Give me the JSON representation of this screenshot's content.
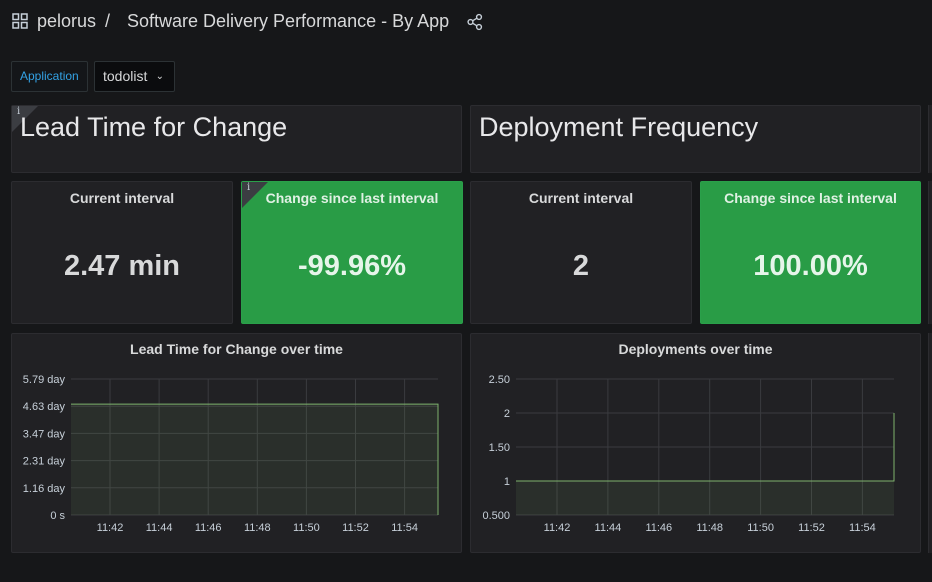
{
  "header": {
    "folder": "pelorus",
    "separator": "/",
    "dashboard_title": "Software Delivery Performance - By App",
    "grid_icon": "apps-grid-icon",
    "share_icon": "share-icon"
  },
  "variables": {
    "label": "Application",
    "value": "todolist",
    "chevron": "⌄"
  },
  "panels": {
    "lead_time_header": {
      "title": "Lead Time for Change",
      "info": "i"
    },
    "deploy_header": {
      "title": "Deployment Frequency"
    },
    "lead_current": {
      "title": "Current interval",
      "value": "2.47 min"
    },
    "lead_change": {
      "title": "Change since last interval",
      "value": "-99.96%",
      "info": "i"
    },
    "deploy_current": {
      "title": "Current interval",
      "value": "2"
    },
    "deploy_change": {
      "title": "Change since last interval",
      "value": "100.00%"
    }
  },
  "colors": {
    "background": "#161719",
    "panel": "#212124",
    "green": "#299c46",
    "series": "#7eb26d",
    "link": "#33a2e5"
  },
  "chart_data": [
    {
      "type": "line",
      "title": "Lead Time for Change over time",
      "yticks": [
        "0 s",
        "1.16 day",
        "2.31 day",
        "3.47 day",
        "4.63 day",
        "5.79 day"
      ],
      "ylim": [
        0,
        5.79
      ],
      "xticks": [
        "11:42",
        "11:44",
        "11:46",
        "11:48",
        "11:50",
        "11:52",
        "11:54"
      ],
      "xlim_minutes": [
        11.5,
        14.9
      ],
      "grid": true,
      "series": [
        {
          "x": [
            11.5,
            14.78,
            14.98
          ],
          "y": [
            4.72,
            4.72,
            0
          ]
        },
        {
          "x": [
            14.98,
            16.2
          ],
          "y": [
            0,
            0
          ]
        }
      ]
    },
    {
      "type": "line",
      "title": "Deployments over time",
      "yticks": [
        "0.500",
        "1",
        "1.50",
        "2",
        "2.50"
      ],
      "ylim": [
        0.5,
        2.5
      ],
      "xticks": [
        "11:42",
        "11:44",
        "11:46",
        "11:48",
        "11:50",
        "11:52",
        "11:54"
      ],
      "grid": true,
      "series": [
        {
          "x": [
            11.5,
            14.6,
            14.8,
            16.0
          ],
          "y": [
            1,
            1,
            2,
            2
          ]
        }
      ]
    }
  ]
}
